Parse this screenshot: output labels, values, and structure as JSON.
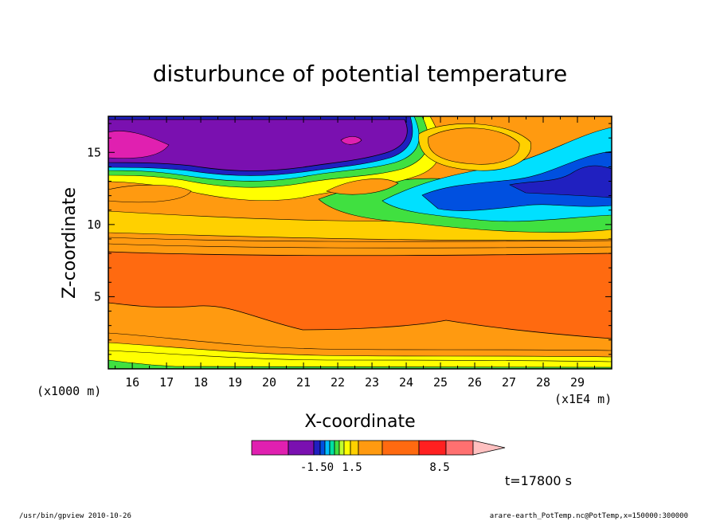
{
  "chart_data": {
    "type": "heatmap",
    "title": "disturbunce of potential temperature",
    "xlabel": "X-coordinate",
    "ylabel": "Z-coordinate",
    "x_unit_left": "(x1000 m)",
    "x_unit_right": "(x1E4 m)",
    "x_ticks": [
      "16",
      "17",
      "18",
      "19",
      "20",
      "21",
      "22",
      "23",
      "24",
      "25",
      "26",
      "27",
      "28",
      "29"
    ],
    "y_ticks": [
      "5",
      "10",
      "15"
    ],
    "xlim": [
      15.3,
      30
    ],
    "ylim": [
      0,
      17.5
    ],
    "colorbar": {
      "colors": [
        "#e020b0",
        "#7a10b0",
        "#2020c0",
        "#0050e0",
        "#00c0ff",
        "#00e0a0",
        "#40e040",
        "#c0ff30",
        "#ffff00",
        "#ffd000",
        "#ff9a10",
        "#ff6a10",
        "#ff2020",
        "#ff7070",
        "#ffc0c0"
      ],
      "labels": [
        "-1.50",
        "1.5",
        "8.5"
      ]
    },
    "annotation": "t=17800 s",
    "footer_left": "/usr/bin/gpview   2010-10-26",
    "footer_right": "arare-earth_PotTemp.nc@PotTemp,x=150000:300000"
  }
}
